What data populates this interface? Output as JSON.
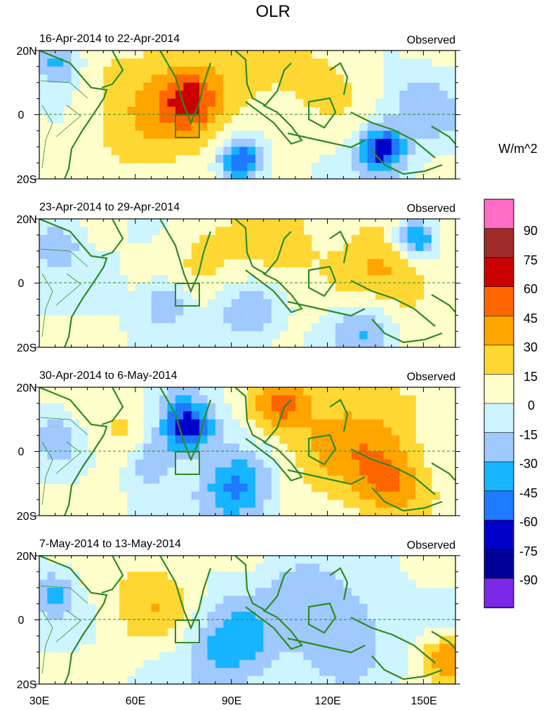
{
  "chart_data": {
    "type": "heatmap",
    "title": "OLR",
    "variable": "OLR",
    "units": "W/m^2",
    "x_ticks": [
      "30E",
      "60E",
      "90E",
      "120E",
      "150E"
    ],
    "y_ticks": [
      "20N",
      "0",
      "20S"
    ],
    "x_range_deg": [
      30,
      160
    ],
    "y_range_deg": [
      -20,
      20
    ],
    "colorbar": {
      "labels": [
        "90",
        "75",
        "60",
        "45",
        "30",
        "15",
        "0",
        "-15",
        "-30",
        "-45",
        "-60",
        "-75",
        "-90"
      ],
      "colors": [
        "#ff6ec4",
        "#9e2a2a",
        "#cc0000",
        "#ff6600",
        "#ffa500",
        "#ffd733",
        "#ffffcc",
        "#cdf4ff",
        "#9fc9ff",
        "#17b4ff",
        "#1e7aff",
        "#0000cc",
        "#000099",
        "#7b28e8"
      ]
    },
    "panels": [
      {
        "period": "16-Apr-2014 to 22-Apr-2014",
        "tag": "Observed",
        "anomalies": [
          {
            "lon": 82,
            "lat": 8,
            "value": 22,
            "spread": 18
          },
          {
            "lon": 77,
            "lat": 5,
            "value": 38,
            "spread": 6
          },
          {
            "lon": 62,
            "lat": 0,
            "value": 20,
            "spread": 14
          },
          {
            "lon": 93,
            "lat": -14,
            "value": -72,
            "spread": 5
          },
          {
            "lon": 137,
            "lat": -11,
            "value": -70,
            "spread": 5
          },
          {
            "lon": 36,
            "lat": 16,
            "value": -40,
            "spread": 5
          },
          {
            "lon": 120,
            "lat": 12,
            "value": 18,
            "spread": 10
          },
          {
            "lon": 150,
            "lat": 2,
            "value": -25,
            "spread": 8
          }
        ]
      },
      {
        "period": "23-Apr-2014 to 29-Apr-2014",
        "tag": "Observed",
        "anomalies": [
          {
            "lon": 140,
            "lat": 6,
            "value": 32,
            "spread": 14
          },
          {
            "lon": 148,
            "lat": 14,
            "value": -68,
            "spread": 5
          },
          {
            "lon": 83,
            "lat": 10,
            "value": 18,
            "spread": 10
          },
          {
            "lon": 70,
            "lat": -6,
            "value": -32,
            "spread": 5
          },
          {
            "lon": 105,
            "lat": 12,
            "value": 22,
            "spread": 8
          },
          {
            "lon": 132,
            "lat": -14,
            "value": -35,
            "spread": 7
          },
          {
            "lon": 95,
            "lat": -10,
            "value": -32,
            "spread": 6
          },
          {
            "lon": 36,
            "lat": 12,
            "value": -30,
            "spread": 5
          }
        ]
      },
      {
        "period": "30-Apr-2014 to 6-May-2014",
        "tag": "Observed",
        "anomalies": [
          {
            "lon": 127,
            "lat": 4,
            "value": 35,
            "spread": 16
          },
          {
            "lon": 105,
            "lat": 15,
            "value": 38,
            "spread": 6
          },
          {
            "lon": 76,
            "lat": 8,
            "value": -72,
            "spread": 6
          },
          {
            "lon": 92,
            "lat": -12,
            "value": -52,
            "spread": 8
          },
          {
            "lon": 65,
            "lat": -3,
            "value": -35,
            "spread": 5
          },
          {
            "lon": 140,
            "lat": -10,
            "value": 32,
            "spread": 8
          },
          {
            "lon": 55,
            "lat": 6,
            "value": 18,
            "spread": 8
          },
          {
            "lon": 35,
            "lat": 4,
            "value": -28,
            "spread": 5
          }
        ]
      },
      {
        "period": "7-May-2014 to 13-May-2014",
        "tag": "Observed",
        "anomalies": [
          {
            "lon": 65,
            "lat": 6,
            "value": 28,
            "spread": 10
          },
          {
            "lon": 90,
            "lat": -8,
            "value": -42,
            "spread": 10
          },
          {
            "lon": 125,
            "lat": -4,
            "value": -32,
            "spread": 10
          },
          {
            "lon": 157,
            "lat": -12,
            "value": 42,
            "spread": 5
          },
          {
            "lon": 34,
            "lat": 8,
            "value": -35,
            "spread": 5
          },
          {
            "lon": 110,
            "lat": 10,
            "value": -20,
            "spread": 8
          }
        ]
      }
    ]
  }
}
